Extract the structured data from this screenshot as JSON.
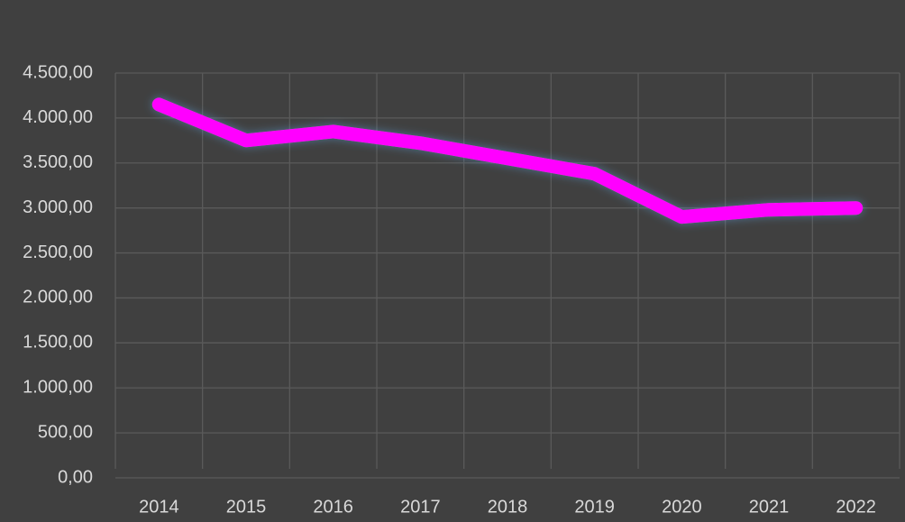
{
  "chart_data": {
    "type": "line",
    "categories": [
      "2014",
      "2015",
      "2016",
      "2017",
      "2018",
      "2019",
      "2020",
      "2021",
      "2022"
    ],
    "series": [
      {
        "color": "#ff00ff",
        "values": [
          4150,
          3750,
          3850,
          3720,
          3550,
          3380,
          2900,
          2980,
          3000
        ]
      }
    ],
    "ylim": [
      0,
      4500
    ],
    "yticks": [
      {
        "value": 0,
        "label": "0,00"
      },
      {
        "value": 500,
        "label": "500,00"
      },
      {
        "value": 1000,
        "label": "1.000,00"
      },
      {
        "value": 1500,
        "label": "1.500,00"
      },
      {
        "value": 2000,
        "label": "2.000,00"
      },
      {
        "value": 2500,
        "label": "2.500,00"
      },
      {
        "value": 3000,
        "label": "3.000,00"
      },
      {
        "value": 3500,
        "label": "3.500,00"
      },
      {
        "value": 4000,
        "label": "4.000,00"
      },
      {
        "value": 4500,
        "label": "4.500,00"
      }
    ],
    "grid": true
  }
}
